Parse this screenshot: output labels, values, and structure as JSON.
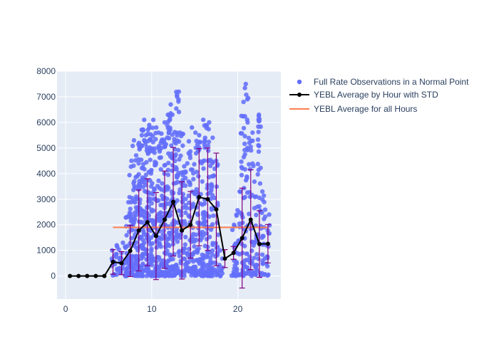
{
  "chart_data": {
    "type": "scatter",
    "title": "",
    "xlabel": "",
    "ylabel": "",
    "xlim": [
      -1,
      25
    ],
    "ylim": [
      -900,
      8000
    ],
    "x_ticks": [
      0,
      10,
      20
    ],
    "y_ticks": [
      0,
      1000,
      2000,
      3000,
      4000,
      5000,
      6000,
      7000,
      8000
    ],
    "x_tick_labels": [
      "0",
      "10",
      "20"
    ],
    "y_tick_labels": [
      "0",
      "1000",
      "2000",
      "3000",
      "4000",
      "5000",
      "6000",
      "7000",
      "8000"
    ],
    "grid": true,
    "legend_position": "top-right outside",
    "colors": {
      "plot_bg": "#e5ecf6",
      "grid": "#ffffff",
      "scatter": "#636efa",
      "average_line": "#000000",
      "error_bars": "#800080",
      "overall_line": "#ff7f50"
    },
    "legend": [
      {
        "name": "Full Rate Observations in a Normal Point",
        "symbol": "dot"
      },
      {
        "name": "YEBL Average by Hour with STD",
        "symbol": "line-marker"
      },
      {
        "name": "YEBL Average for all Hours",
        "symbol": "line"
      }
    ],
    "scatter_hours": [
      {
        "hour": 5.5,
        "max": 1000,
        "count": 12
      },
      {
        "hour": 6.0,
        "max": 1200,
        "count": 10
      },
      {
        "hour": 6.5,
        "max": 1300,
        "count": 14
      },
      {
        "hour": 7.0,
        "max": 2300,
        "count": 22
      },
      {
        "hour": 7.5,
        "max": 4500,
        "count": 40
      },
      {
        "hour": 8.0,
        "max": 5300,
        "count": 45
      },
      {
        "hour": 8.5,
        "max": 5200,
        "count": 50
      },
      {
        "hour": 9.0,
        "max": 6100,
        "count": 60
      },
      {
        "hour": 9.5,
        "max": 5900,
        "count": 60
      },
      {
        "hour": 10.0,
        "max": 6100,
        "count": 55
      },
      {
        "hour": 10.5,
        "max": 5800,
        "count": 50
      },
      {
        "hour": 11.0,
        "max": 5600,
        "count": 55
      },
      {
        "hour": 11.5,
        "max": 6000,
        "count": 55
      },
      {
        "hour": 12.0,
        "max": 6700,
        "count": 60
      },
      {
        "hour": 12.5,
        "max": 6300,
        "count": 55
      },
      {
        "hour": 13.0,
        "max": 7200,
        "count": 50
      },
      {
        "hour": 13.5,
        "max": 5600,
        "count": 40
      },
      {
        "hour": 14.0,
        "max": 4400,
        "count": 30
      },
      {
        "hour": 14.5,
        "max": 5800,
        "count": 40
      },
      {
        "hour": 15.0,
        "max": 5600,
        "count": 40
      },
      {
        "hour": 15.5,
        "max": 5500,
        "count": 40
      },
      {
        "hour": 16.0,
        "max": 6100,
        "count": 45
      },
      {
        "hour": 16.5,
        "max": 6000,
        "count": 45
      },
      {
        "hour": 17.0,
        "max": 5400,
        "count": 40
      },
      {
        "hour": 17.5,
        "max": 4500,
        "count": 25
      },
      {
        "hour": 18.0,
        "max": 1000,
        "count": 10
      },
      {
        "hour": 19.5,
        "max": 2000,
        "count": 16
      },
      {
        "hour": 20.0,
        "max": 3300,
        "count": 22
      },
      {
        "hour": 20.5,
        "max": 6800,
        "count": 30
      },
      {
        "hour": 21.0,
        "max": 7500,
        "count": 35
      },
      {
        "hour": 21.5,
        "max": 5600,
        "count": 30
      },
      {
        "hour": 22.0,
        "max": 4300,
        "count": 28
      },
      {
        "hour": 22.5,
        "max": 6300,
        "count": 30
      },
      {
        "hour": 23.0,
        "max": 3300,
        "count": 22
      },
      {
        "hour": 23.5,
        "max": 2400,
        "count": 14
      }
    ],
    "series": [
      {
        "name": "YEBL Average by Hour with STD",
        "x": [
          0.5,
          1.5,
          2.5,
          3.5,
          4.5,
          5.5,
          6.5,
          7.5,
          8.5,
          9.5,
          10.5,
          11.5,
          12.5,
          13.5,
          14.5,
          15.5,
          16.5,
          17.5,
          18.5,
          19.5,
          20.5,
          21.5,
          22.5,
          23.5
        ],
        "y": [
          0,
          0,
          0,
          0,
          0,
          550,
          500,
          980,
          1780,
          2100,
          1560,
          2200,
          2900,
          1780,
          2000,
          3080,
          3000,
          2600,
          680,
          900,
          1480,
          2200,
          1250,
          1260
        ],
        "std": [
          0,
          0,
          0,
          0,
          0,
          480,
          450,
          1000,
          1580,
          1700,
          1700,
          1900,
          2120,
          1900,
          1300,
          1900,
          2000,
          2200,
          350,
          250,
          1950,
          1950,
          1300,
          750
        ]
      },
      {
        "name": "YEBL Average for all Hours",
        "x": [
          5.5,
          23.5
        ],
        "y": [
          1900,
          1900
        ]
      }
    ]
  }
}
